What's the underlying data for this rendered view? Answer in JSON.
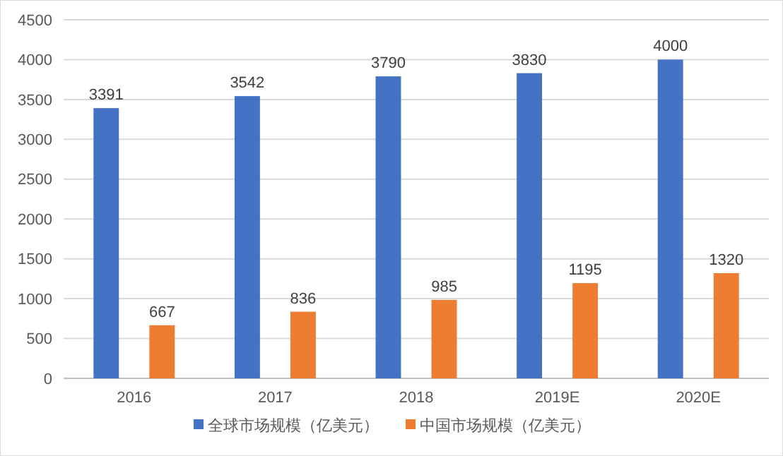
{
  "chart_data": {
    "type": "bar",
    "categories": [
      "2016",
      "2017",
      "2018",
      "2019E",
      "2020E"
    ],
    "series": [
      {
        "name": "全球市场规模（亿美元）",
        "color": "#4472c4",
        "values": [
          3391,
          3542,
          3790,
          3830,
          4000
        ]
      },
      {
        "name": "中国市场规模（亿美元）",
        "color": "#ed7d31",
        "values": [
          667,
          836,
          985,
          1195,
          1320
        ]
      }
    ],
    "ylim": [
      0,
      4500
    ],
    "yticks": [
      0,
      500,
      1000,
      1500,
      2000,
      2500,
      3000,
      3500,
      4000,
      4500
    ],
    "grid": "y",
    "legend": "bottom",
    "data_labels": true
  }
}
